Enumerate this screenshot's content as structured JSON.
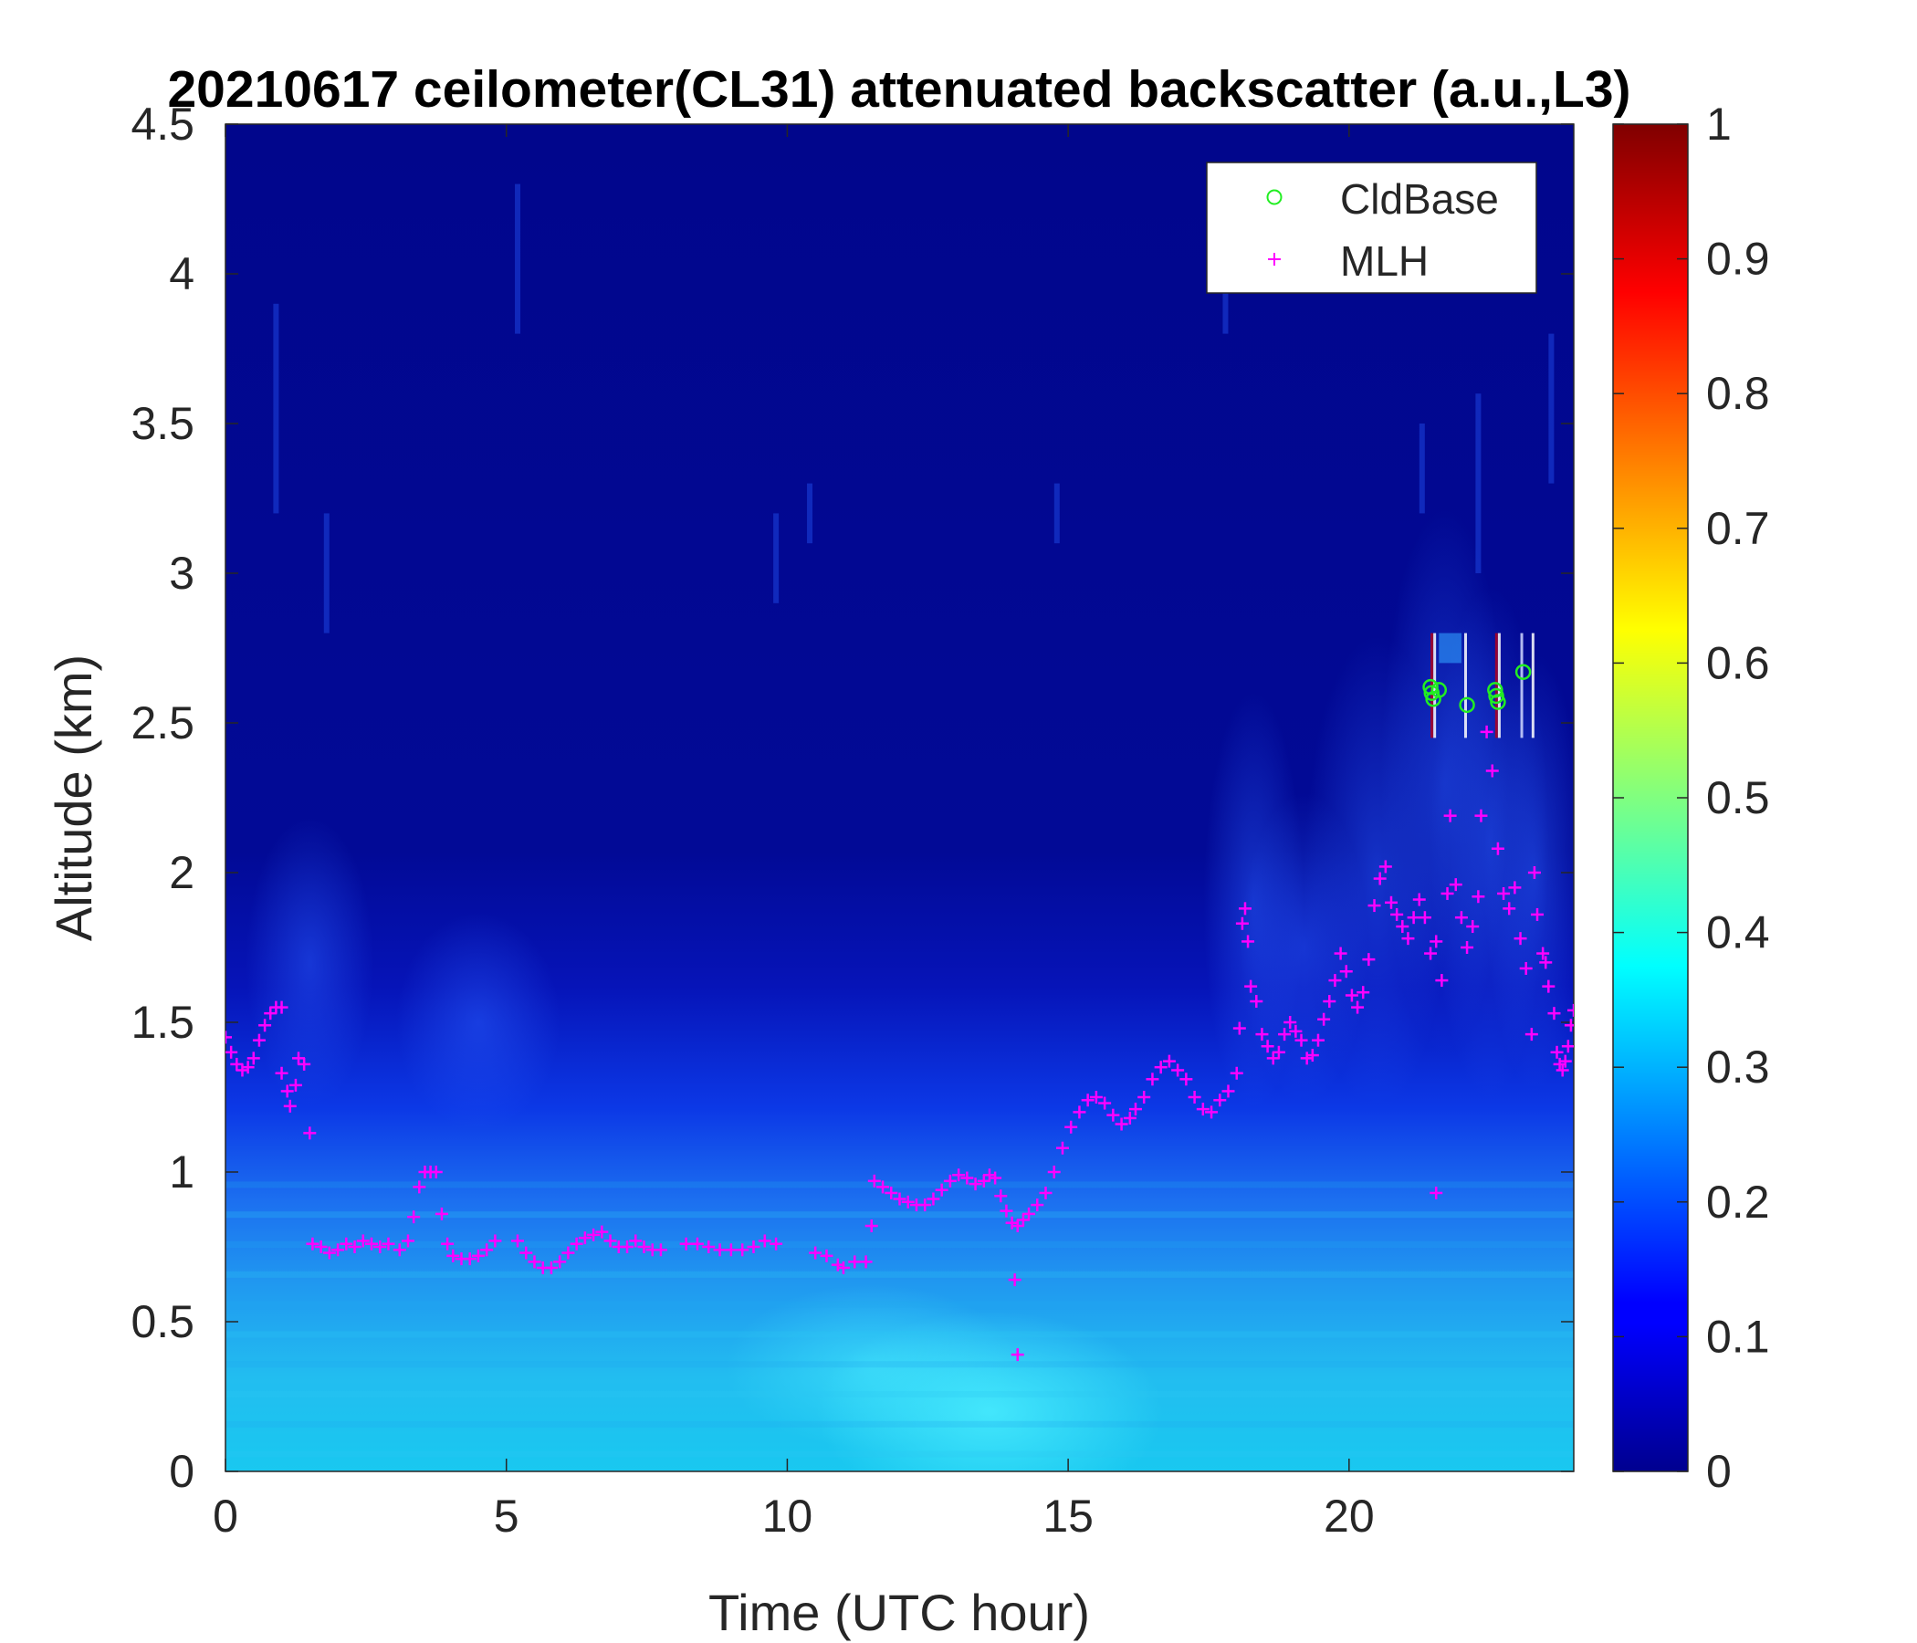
{
  "chart_data": {
    "type": "heatmap",
    "title": "20210617 ceilometer(CL31) attenuated backscatter (a.u.,L3)",
    "xlabel": "Time (UTC hour)",
    "ylabel": "Altitude (km)",
    "xlim": [
      0,
      24
    ],
    "ylim": [
      0,
      4.5
    ],
    "x_ticks": [
      "0",
      "5",
      "10",
      "15",
      "20"
    ],
    "y_ticks": [
      "0",
      "0.5",
      "1",
      "1.5",
      "2",
      "2.5",
      "3",
      "3.5",
      "4",
      "4.5"
    ],
    "colorbar": {
      "colormap": "jet",
      "range": [
        0,
        1
      ],
      "ticks": [
        "0",
        "0.1",
        "0.2",
        "0.3",
        "0.4",
        "0.5",
        "0.6",
        "0.7",
        "0.8",
        "0.9",
        "1"
      ]
    },
    "legend": {
      "position": "top-right",
      "entries": [
        {
          "label": "CldBase",
          "marker": "circle",
          "color": "#22ee22"
        },
        {
          "label": "MLH",
          "marker": "plus",
          "color": "#ff00ff"
        }
      ]
    },
    "series": [
      {
        "name": "MLH",
        "marker": "plus",
        "color": "#ff00ff",
        "points": [
          [
            0.0,
            1.45
          ],
          [
            0.1,
            1.4
          ],
          [
            0.2,
            1.36
          ],
          [
            0.3,
            1.34
          ],
          [
            0.4,
            1.35
          ],
          [
            0.5,
            1.38
          ],
          [
            0.6,
            1.44
          ],
          [
            0.7,
            1.49
          ],
          [
            0.8,
            1.53
          ],
          [
            0.9,
            1.55
          ],
          [
            1.0,
            1.55
          ],
          [
            1.0,
            1.33
          ],
          [
            1.1,
            1.27
          ],
          [
            1.15,
            1.22
          ],
          [
            1.25,
            1.29
          ],
          [
            1.3,
            1.38
          ],
          [
            1.4,
            1.36
          ],
          [
            1.5,
            1.13
          ],
          [
            1.55,
            0.76
          ],
          [
            1.7,
            0.75
          ],
          [
            1.85,
            0.73
          ],
          [
            2.0,
            0.74
          ],
          [
            2.15,
            0.76
          ],
          [
            2.3,
            0.75
          ],
          [
            2.45,
            0.77
          ],
          [
            2.6,
            0.76
          ],
          [
            2.75,
            0.75
          ],
          [
            2.9,
            0.76
          ],
          [
            3.1,
            0.74
          ],
          [
            3.25,
            0.77
          ],
          [
            3.35,
            0.85
          ],
          [
            3.45,
            0.95
          ],
          [
            3.55,
            1.0
          ],
          [
            3.65,
            1.0
          ],
          [
            3.75,
            1.0
          ],
          [
            3.85,
            0.86
          ],
          [
            3.95,
            0.76
          ],
          [
            4.05,
            0.72
          ],
          [
            4.2,
            0.71
          ],
          [
            4.35,
            0.71
          ],
          [
            4.5,
            0.72
          ],
          [
            4.65,
            0.74
          ],
          [
            4.8,
            0.77
          ],
          [
            5.2,
            0.77
          ],
          [
            5.35,
            0.73
          ],
          [
            5.5,
            0.7
          ],
          [
            5.65,
            0.68
          ],
          [
            5.8,
            0.68
          ],
          [
            5.95,
            0.7
          ],
          [
            6.1,
            0.73
          ],
          [
            6.25,
            0.76
          ],
          [
            6.4,
            0.78
          ],
          [
            6.55,
            0.79
          ],
          [
            6.7,
            0.8
          ],
          [
            6.85,
            0.77
          ],
          [
            7.0,
            0.75
          ],
          [
            7.15,
            0.75
          ],
          [
            7.3,
            0.77
          ],
          [
            7.45,
            0.75
          ],
          [
            7.6,
            0.74
          ],
          [
            7.75,
            0.74
          ],
          [
            8.2,
            0.76
          ],
          [
            8.4,
            0.76
          ],
          [
            8.6,
            0.75
          ],
          [
            8.8,
            0.74
          ],
          [
            9.0,
            0.74
          ],
          [
            9.2,
            0.74
          ],
          [
            9.4,
            0.75
          ],
          [
            9.6,
            0.77
          ],
          [
            9.8,
            0.76
          ],
          [
            10.5,
            0.73
          ],
          [
            10.7,
            0.72
          ],
          [
            10.9,
            0.69
          ],
          [
            11.0,
            0.68
          ],
          [
            11.2,
            0.7
          ],
          [
            11.4,
            0.7
          ],
          [
            11.5,
            0.82
          ],
          [
            11.55,
            0.97
          ],
          [
            11.7,
            0.95
          ],
          [
            11.85,
            0.93
          ],
          [
            12.0,
            0.91
          ],
          [
            12.15,
            0.9
          ],
          [
            12.3,
            0.89
          ],
          [
            12.45,
            0.89
          ],
          [
            12.6,
            0.91
          ],
          [
            12.75,
            0.94
          ],
          [
            12.9,
            0.97
          ],
          [
            13.05,
            0.99
          ],
          [
            13.2,
            0.98
          ],
          [
            13.35,
            0.96
          ],
          [
            13.5,
            0.97
          ],
          [
            13.6,
            0.99
          ],
          [
            13.7,
            0.98
          ],
          [
            13.8,
            0.92
          ],
          [
            13.9,
            0.87
          ],
          [
            14.0,
            0.83
          ],
          [
            14.1,
            0.82
          ],
          [
            14.05,
            0.64
          ],
          [
            14.1,
            0.39
          ],
          [
            14.2,
            0.84
          ],
          [
            14.3,
            0.86
          ],
          [
            14.45,
            0.89
          ],
          [
            14.6,
            0.93
          ],
          [
            14.75,
            1.0
          ],
          [
            14.9,
            1.08
          ],
          [
            15.05,
            1.15
          ],
          [
            15.2,
            1.2
          ],
          [
            15.35,
            1.24
          ],
          [
            15.5,
            1.25
          ],
          [
            15.65,
            1.23
          ],
          [
            15.8,
            1.19
          ],
          [
            15.95,
            1.16
          ],
          [
            16.1,
            1.18
          ],
          [
            16.2,
            1.21
          ],
          [
            16.35,
            1.25
          ],
          [
            16.5,
            1.31
          ],
          [
            16.65,
            1.35
          ],
          [
            16.8,
            1.37
          ],
          [
            16.95,
            1.34
          ],
          [
            17.1,
            1.31
          ],
          [
            17.25,
            1.25
          ],
          [
            17.4,
            1.21
          ],
          [
            17.55,
            1.2
          ],
          [
            17.7,
            1.24
          ],
          [
            17.85,
            1.27
          ],
          [
            18.0,
            1.33
          ],
          [
            18.05,
            1.48
          ],
          [
            18.1,
            1.83
          ],
          [
            18.15,
            1.88
          ],
          [
            18.2,
            1.77
          ],
          [
            18.25,
            1.62
          ],
          [
            18.35,
            1.57
          ],
          [
            18.45,
            1.46
          ],
          [
            18.55,
            1.42
          ],
          [
            18.65,
            1.38
          ],
          [
            18.75,
            1.4
          ],
          [
            18.85,
            1.46
          ],
          [
            18.95,
            1.5
          ],
          [
            19.05,
            1.47
          ],
          [
            19.15,
            1.44
          ],
          [
            19.25,
            1.38
          ],
          [
            19.35,
            1.39
          ],
          [
            19.45,
            1.44
          ],
          [
            19.55,
            1.51
          ],
          [
            19.65,
            1.57
          ],
          [
            19.75,
            1.64
          ],
          [
            19.85,
            1.73
          ],
          [
            19.95,
            1.67
          ],
          [
            20.05,
            1.59
          ],
          [
            20.15,
            1.55
          ],
          [
            20.25,
            1.6
          ],
          [
            20.35,
            1.71
          ],
          [
            20.45,
            1.89
          ],
          [
            20.55,
            1.98
          ],
          [
            20.65,
            2.02
          ],
          [
            20.75,
            1.9
          ],
          [
            20.85,
            1.86
          ],
          [
            20.95,
            1.82
          ],
          [
            21.05,
            1.78
          ],
          [
            21.15,
            1.85
          ],
          [
            21.25,
            1.91
          ],
          [
            21.35,
            1.85
          ],
          [
            21.45,
            1.73
          ],
          [
            21.55,
            1.77
          ],
          [
            21.65,
            1.64
          ],
          [
            21.75,
            1.93
          ],
          [
            21.8,
            2.19
          ],
          [
            21.9,
            1.96
          ],
          [
            22.0,
            1.85
          ],
          [
            22.1,
            1.75
          ],
          [
            22.2,
            1.82
          ],
          [
            22.3,
            1.92
          ],
          [
            22.35,
            2.19
          ],
          [
            22.45,
            2.47
          ],
          [
            22.55,
            2.34
          ],
          [
            22.65,
            2.08
          ],
          [
            22.75,
            1.93
          ],
          [
            22.85,
            1.88
          ],
          [
            22.95,
            1.95
          ],
          [
            23.05,
            1.78
          ],
          [
            23.15,
            1.68
          ],
          [
            23.25,
            1.46
          ],
          [
            23.3,
            2.0
          ],
          [
            23.35,
            1.86
          ],
          [
            23.45,
            1.73
          ],
          [
            23.5,
            1.7
          ],
          [
            23.55,
            1.62
          ],
          [
            23.65,
            1.53
          ],
          [
            23.7,
            1.4
          ],
          [
            23.75,
            1.36
          ],
          [
            23.8,
            1.34
          ],
          [
            23.85,
            1.37
          ],
          [
            23.9,
            1.42
          ],
          [
            23.95,
            1.49
          ],
          [
            24.0,
            1.54
          ],
          [
            21.55,
            0.93
          ]
        ]
      },
      {
        "name": "CldBase",
        "marker": "circle",
        "color": "#22ee22",
        "points": [
          [
            21.45,
            2.62
          ],
          [
            21.47,
            2.6
          ],
          [
            21.5,
            2.58
          ],
          [
            21.6,
            2.61
          ],
          [
            22.1,
            2.56
          ],
          [
            22.6,
            2.61
          ],
          [
            22.62,
            2.59
          ],
          [
            22.65,
            2.57
          ],
          [
            23.1,
            2.67
          ]
        ]
      }
    ]
  }
}
